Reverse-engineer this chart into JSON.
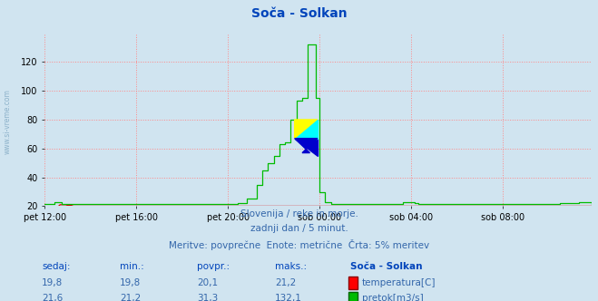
{
  "title": "Soča - Solkan",
  "bg_color": "#d0e4f0",
  "plot_bg_color": "#d0e4f0",
  "grid_color": "#ff8888",
  "xlim": [
    0,
    287
  ],
  "ylim": [
    20,
    140
  ],
  "yticks": [
    20,
    40,
    60,
    80,
    100,
    120
  ],
  "xtick_labels": [
    "pet 12:00",
    "pet 16:00",
    "pet 20:00",
    "sob 00:00",
    "sob 04:00",
    "sob 08:00"
  ],
  "xtick_positions": [
    0,
    48,
    96,
    144,
    192,
    240
  ],
  "temperature_color": "#dd0000",
  "flow_color": "#00bb00",
  "watermark": "www.si-vreme.com",
  "subtitle1": "Slovenija / reke in morje.",
  "subtitle2": "zadnji dan / 5 minut.",
  "subtitle3": "Meritve: povprečne  Enote: metrične  Črta: 5% meritev",
  "table_headers": [
    "sedaj:",
    "min.:",
    "povpr.:",
    "maks.:",
    "Soča - Solkan"
  ],
  "table_row1": [
    "19,8",
    "19,8",
    "20,1",
    "21,2"
  ],
  "table_row2": [
    "21,6",
    "21,2",
    "31,3",
    "132,1"
  ],
  "legend_temp": "temperatura[C]",
  "legend_flow": "pretok[m3/s]",
  "arrow_color": "#cc0000",
  "text_color": "#3366aa",
  "header_color": "#0044bb",
  "val_color": "#3366aa",
  "marker_yellow": "#ffff00",
  "marker_cyan": "#00ffff",
  "marker_blue": "#0000cc"
}
